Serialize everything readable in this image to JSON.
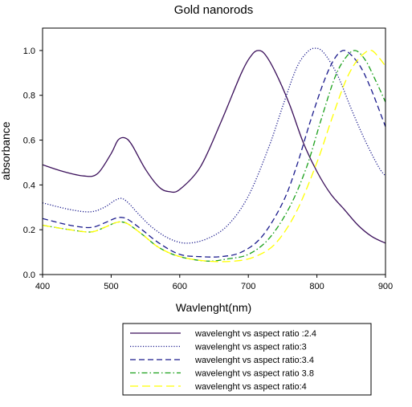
{
  "chart_data": {
    "type": "line",
    "title": "Gold nanorods",
    "xlabel": "Wavlenght(nm)",
    "ylabel": "absorbance",
    "xlim": [
      400,
      900
    ],
    "ylim": [
      0.0,
      1.1
    ],
    "xticks": [
      400,
      500,
      600,
      700,
      800,
      900
    ],
    "yticks": [
      0.0,
      0.2,
      0.4,
      0.6,
      0.8,
      1.0
    ],
    "xtick_labels": [
      "400",
      "500",
      "600",
      "700",
      "800",
      "900"
    ],
    "ytick_labels": [
      "0.0",
      "0.2",
      "0.4",
      "0.6",
      "0.8",
      "1.0"
    ],
    "grid": false,
    "legend_position": "bottom",
    "series": [
      {
        "name": "wavelenght vs aspect ratio :2.4",
        "color": "#3a0f5a",
        "dash": "solid",
        "x": [
          400,
          430,
          460,
          480,
          500,
          510,
          520,
          530,
          550,
          570,
          585,
          600,
          630,
          660,
          690,
          705,
          715,
          725,
          740,
          760,
          780,
          800,
          820,
          840,
          860,
          880,
          900
        ],
        "y": [
          0.49,
          0.46,
          0.44,
          0.45,
          0.54,
          0.6,
          0.61,
          0.58,
          0.47,
          0.39,
          0.37,
          0.38,
          0.48,
          0.68,
          0.9,
          0.98,
          1.0,
          0.98,
          0.9,
          0.76,
          0.59,
          0.46,
          0.36,
          0.29,
          0.22,
          0.17,
          0.14
        ]
      },
      {
        "name": "wavelenght vs aspect ratio:3",
        "color": "#1a1a8c",
        "dash": "dotted",
        "x": [
          400,
          440,
          470,
          490,
          505,
          515,
          525,
          540,
          560,
          585,
          610,
          640,
          670,
          700,
          730,
          750,
          770,
          785,
          797,
          810,
          830,
          850,
          870,
          890,
          900
        ],
        "y": [
          0.32,
          0.29,
          0.28,
          0.3,
          0.33,
          0.34,
          0.32,
          0.27,
          0.21,
          0.16,
          0.14,
          0.16,
          0.22,
          0.35,
          0.57,
          0.75,
          0.92,
          0.99,
          1.01,
          0.99,
          0.89,
          0.74,
          0.6,
          0.48,
          0.44
        ]
      },
      {
        "name": "wavelenght vs aspect ratio:3.4",
        "color": "#1a1a8c",
        "dash": "dashed",
        "x": [
          400,
          440,
          470,
          490,
          505,
          515,
          525,
          545,
          570,
          600,
          630,
          660,
          690,
          720,
          750,
          770,
          790,
          810,
          825,
          838,
          850,
          865,
          880,
          895,
          900
        ],
        "y": [
          0.25,
          0.22,
          0.21,
          0.23,
          0.25,
          0.255,
          0.245,
          0.2,
          0.14,
          0.09,
          0.08,
          0.08,
          0.1,
          0.17,
          0.32,
          0.48,
          0.68,
          0.86,
          0.96,
          1.0,
          0.98,
          0.92,
          0.82,
          0.7,
          0.66
        ]
      },
      {
        "name": "wavelenght vs aspect ratio 3.8",
        "color": "#1aa01a",
        "dash": "dashdot",
        "x": [
          400,
          440,
          470,
          490,
          505,
          515,
          525,
          545,
          570,
          600,
          640,
          670,
          700,
          730,
          760,
          785,
          805,
          825,
          840,
          855,
          870,
          885,
          900
        ],
        "y": [
          0.22,
          0.2,
          0.19,
          0.21,
          0.23,
          0.235,
          0.225,
          0.18,
          0.12,
          0.08,
          0.06,
          0.07,
          0.09,
          0.16,
          0.3,
          0.48,
          0.68,
          0.87,
          0.96,
          1.0,
          0.96,
          0.87,
          0.77
        ]
      },
      {
        "name": "wavelenght vs aspect ratio:4",
        "color": "#ffff00",
        "dash": "longdash",
        "x": [
          400,
          440,
          470,
          490,
          505,
          515,
          525,
          545,
          570,
          600,
          640,
          680,
          710,
          740,
          770,
          800,
          820,
          840,
          855,
          870,
          880,
          890,
          900
        ],
        "y": [
          0.22,
          0.2,
          0.19,
          0.21,
          0.23,
          0.235,
          0.225,
          0.18,
          0.12,
          0.08,
          0.06,
          0.06,
          0.08,
          0.14,
          0.28,
          0.5,
          0.68,
          0.85,
          0.94,
          0.99,
          1.0,
          0.97,
          0.93
        ]
      }
    ]
  }
}
